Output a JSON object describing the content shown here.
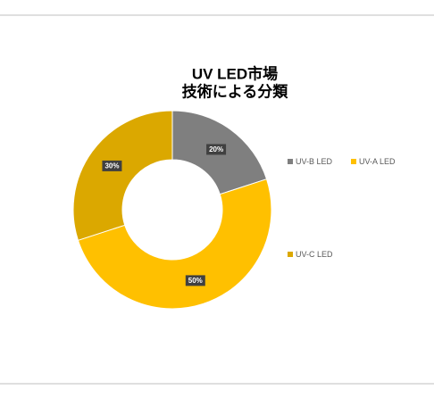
{
  "chart_data": {
    "type": "donut",
    "title": [
      "UV LED市場",
      "技術による分類"
    ],
    "categories": [
      "UV-B LED",
      "UV-A LED",
      "UV-C LED"
    ],
    "values": [
      20,
      50,
      30
    ],
    "value_labels": [
      "20%",
      "50%",
      "30%"
    ],
    "colors": [
      "#7f7f7f",
      "#ffc000",
      "#dba800"
    ],
    "legend": "right"
  }
}
